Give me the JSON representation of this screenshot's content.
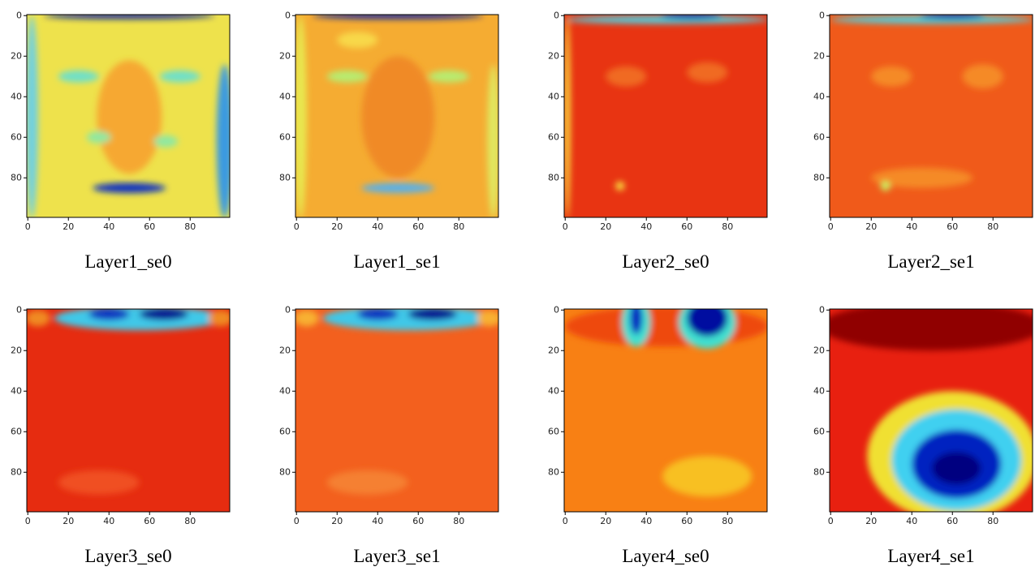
{
  "chart_data": [
    {
      "type": "heatmap",
      "title": "Layer1_se0",
      "xlim": [
        -0.5,
        99.5
      ],
      "ylim": [
        99.5,
        -0.5
      ],
      "xticks": [
        0,
        20,
        40,
        60,
        80
      ],
      "yticks": [
        0,
        20,
        40,
        60,
        80
      ]
    },
    {
      "type": "heatmap",
      "title": "Layer1_se1",
      "xlim": [
        -0.5,
        99.5
      ],
      "ylim": [
        99.5,
        -0.5
      ],
      "xticks": [
        0,
        20,
        40,
        60,
        80
      ],
      "yticks": [
        0,
        20,
        40,
        60,
        80
      ]
    },
    {
      "type": "heatmap",
      "title": "Layer2_se0",
      "xlim": [
        -0.5,
        99.5
      ],
      "ylim": [
        99.5,
        -0.5
      ],
      "xticks": [
        0,
        20,
        40,
        60,
        80
      ],
      "yticks": [
        0,
        20,
        40,
        60,
        80
      ]
    },
    {
      "type": "heatmap",
      "title": "Layer2_se1",
      "xlim": [
        -0.5,
        99.5
      ],
      "ylim": [
        99.5,
        -0.5
      ],
      "xticks": [
        0,
        20,
        40,
        60,
        80
      ],
      "yticks": [
        0,
        20,
        40,
        60,
        80
      ]
    },
    {
      "type": "heatmap",
      "title": "Layer3_se0",
      "xlim": [
        -0.5,
        99.5
      ],
      "ylim": [
        99.5,
        -0.5
      ],
      "xticks": [
        0,
        20,
        40,
        60,
        80
      ],
      "yticks": [
        0,
        20,
        40,
        60,
        80
      ]
    },
    {
      "type": "heatmap",
      "title": "Layer3_se1",
      "xlim": [
        -0.5,
        99.5
      ],
      "ylim": [
        99.5,
        -0.5
      ],
      "xticks": [
        0,
        20,
        40,
        60,
        80
      ],
      "yticks": [
        0,
        20,
        40,
        60,
        80
      ]
    },
    {
      "type": "heatmap",
      "title": "Layer4_se0",
      "xlim": [
        -0.5,
        99.5
      ],
      "ylim": [
        99.5,
        -0.5
      ],
      "xticks": [
        0,
        20,
        40,
        60,
        80
      ],
      "yticks": [
        0,
        20,
        40,
        60,
        80
      ]
    },
    {
      "type": "heatmap",
      "title": "Layer4_se1",
      "xlim": [
        -0.5,
        99.5
      ],
      "ylim": [
        99.5,
        -0.5
      ],
      "xticks": [
        0,
        20,
        40,
        60,
        80
      ],
      "yticks": [
        0,
        20,
        40,
        60,
        80
      ]
    }
  ]
}
